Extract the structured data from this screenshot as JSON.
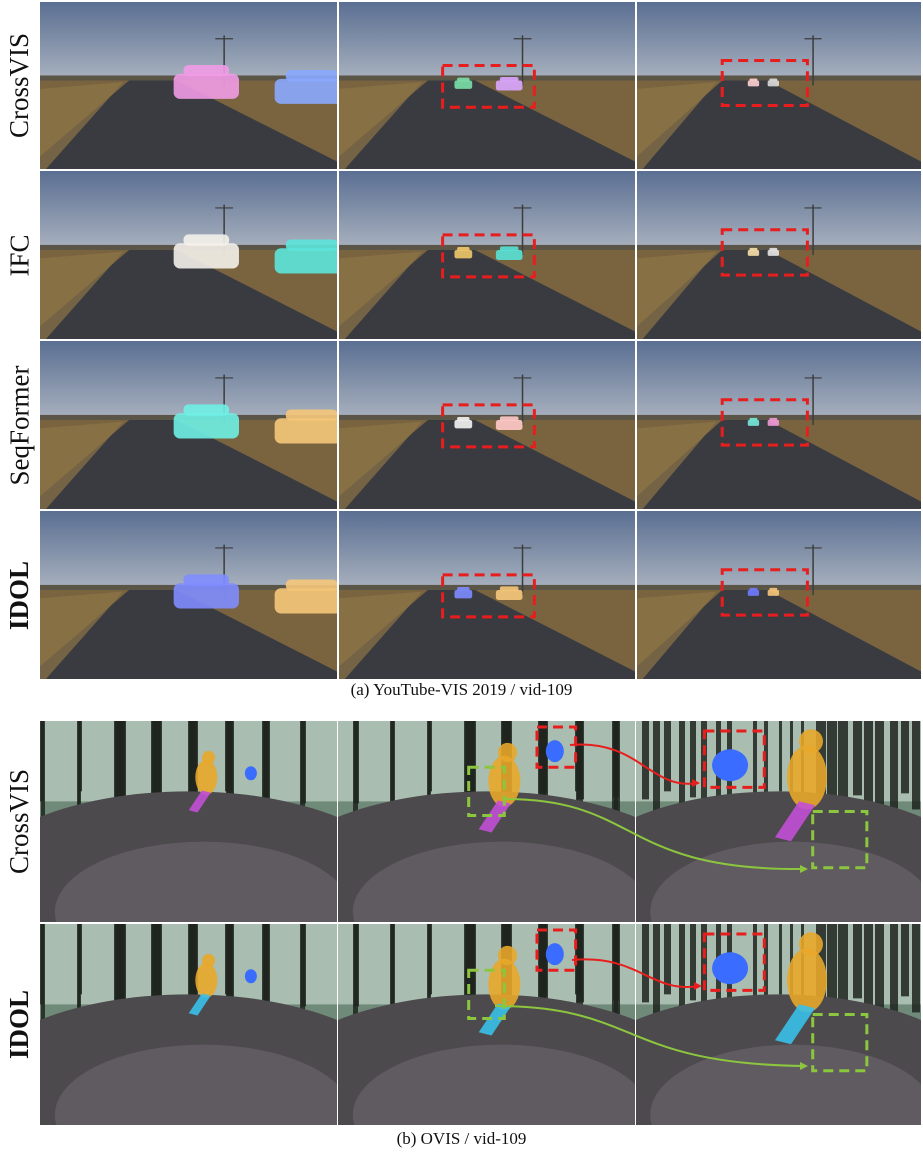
{
  "figure_a": {
    "caption": "(a) YouTube-VIS 2019 / vid-109",
    "methods": [
      {
        "label": "CrossVIS",
        "bold": false,
        "far_mask_colors": [
          "#7be0a8",
          "#d9a6ff"
        ],
        "near_colors": [
          "#f19be6",
          "#8aa8ff"
        ],
        "far2_colors": [
          "#ffd2d2",
          "#dcdcdc"
        ]
      },
      {
        "label": "IFC",
        "bold": false,
        "far_mask_colors": [
          "#f2c96a",
          "#58e1d6"
        ],
        "near_colors": [
          "#f4f1ea",
          "#5be6da"
        ],
        "far2_colors": [
          "#f7e0a8",
          "#e5e5e5"
        ]
      },
      {
        "label": "SeqFormer",
        "bold": false,
        "far_mask_colors": [
          "#f4f4f4",
          "#ffc9c9"
        ],
        "near_colors": [
          "#6ff0e4",
          "#f4c77a"
        ],
        "far2_colors": [
          "#76ead9",
          "#ef9ad9"
        ]
      },
      {
        "label": "IDOL",
        "bold": true,
        "far_mask_colors": [
          "#7d8cff",
          "#f5c77a"
        ],
        "near_colors": [
          "#7f8dff",
          "#f5c77a"
        ],
        "far2_colors": [
          "#6f7cff",
          "#f5c77a"
        ]
      }
    ]
  },
  "figure_b": {
    "caption": "(b) OVIS / vid-109",
    "methods": [
      {
        "label": "CrossVIS",
        "bold": false,
        "rider_colors": [
          "#e8a72a",
          "#3a6cff",
          "#c24fd6"
        ]
      },
      {
        "label": "IDOL",
        "bold": true,
        "rider_colors": [
          "#e8a72a",
          "#3a6cff",
          "#38c0e8"
        ]
      }
    ]
  },
  "colors": {
    "highlight_red": "#e81e1e",
    "highlight_green": "#8cc63f"
  }
}
